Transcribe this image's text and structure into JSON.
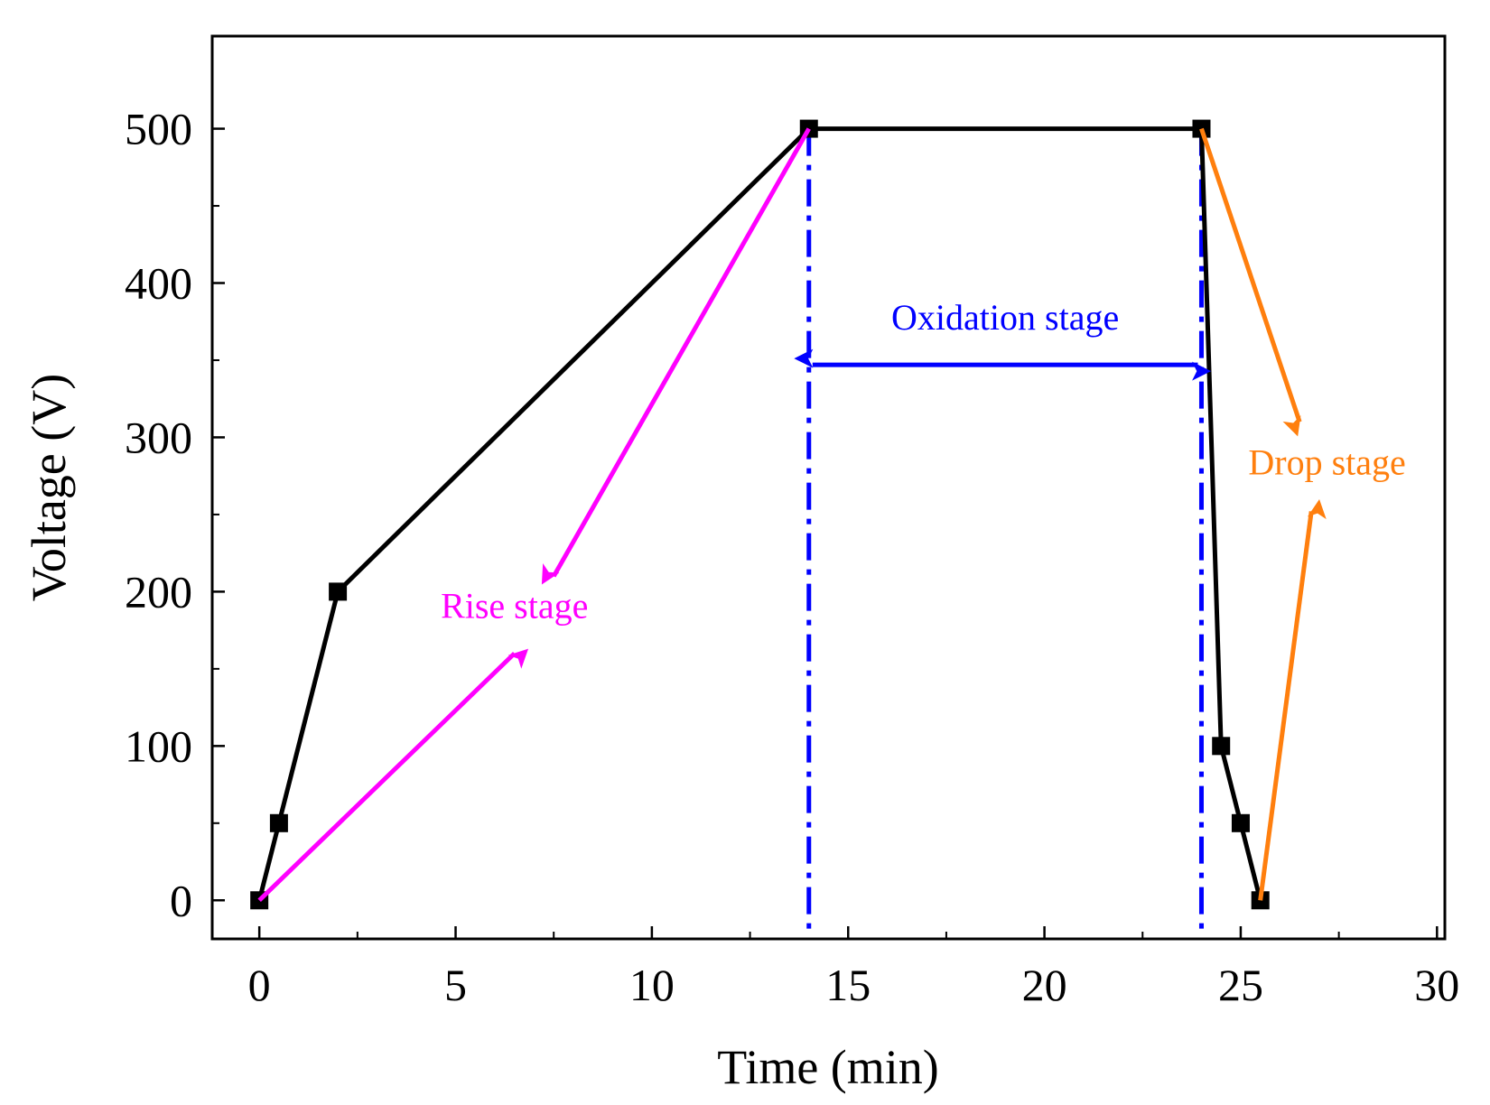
{
  "chart_data": {
    "type": "line",
    "title": "",
    "xlabel": "Time (min)",
    "ylabel": "Voltage (V)",
    "xlim": [
      -1.2,
      30.2
    ],
    "ylim": [
      -25,
      560
    ],
    "xticks": [
      0,
      5,
      10,
      15,
      20,
      25,
      30
    ],
    "xtick_labels": [
      "0",
      "5",
      "10",
      "15",
      "20",
      "25",
      "30"
    ],
    "yticks": [
      0,
      100,
      200,
      300,
      400,
      500
    ],
    "ytick_labels": [
      "0",
      "100",
      "200",
      "300",
      "400",
      "500"
    ],
    "series": [
      {
        "name": "Voltage",
        "color": "#000000",
        "marker": "square",
        "x": [
          0,
          0.5,
          2,
          14,
          24,
          24.5,
          25,
          25.5
        ],
        "y": [
          0,
          50,
          200,
          500,
          500,
          100,
          50,
          0
        ]
      }
    ],
    "reference_lines": [
      {
        "x": 14,
        "color": "#0000ff",
        "style": "dash-dot"
      },
      {
        "x": 24,
        "color": "#0000ff",
        "style": "dash-dot"
      }
    ],
    "annotations": [
      {
        "text": "Rise stage",
        "color": "#ff00ff",
        "at": [
          6.5,
          183
        ],
        "arrows": [
          {
            "from": [
              0,
              0
            ],
            "to": [
              6.5,
              160
            ]
          },
          {
            "from": [
              14,
              500
            ],
            "to": [
              7.5,
              210
            ]
          }
        ]
      },
      {
        "text": "Oxidation stage",
        "color": "#0000ff",
        "at": [
          19,
          370
        ],
        "double_arrow": {
          "from": [
            14,
            347
          ],
          "to": [
            24,
            347
          ]
        }
      },
      {
        "text": "Drop stage",
        "color": "#ff7f0e",
        "at": [
          27.2,
          276
        ],
        "arrows": [
          {
            "from": [
              24,
              500
            ],
            "to": [
              26.5,
              310
            ]
          },
          {
            "from": [
              25.5,
              0
            ],
            "to": [
              26.8,
              252
            ]
          }
        ]
      }
    ]
  }
}
